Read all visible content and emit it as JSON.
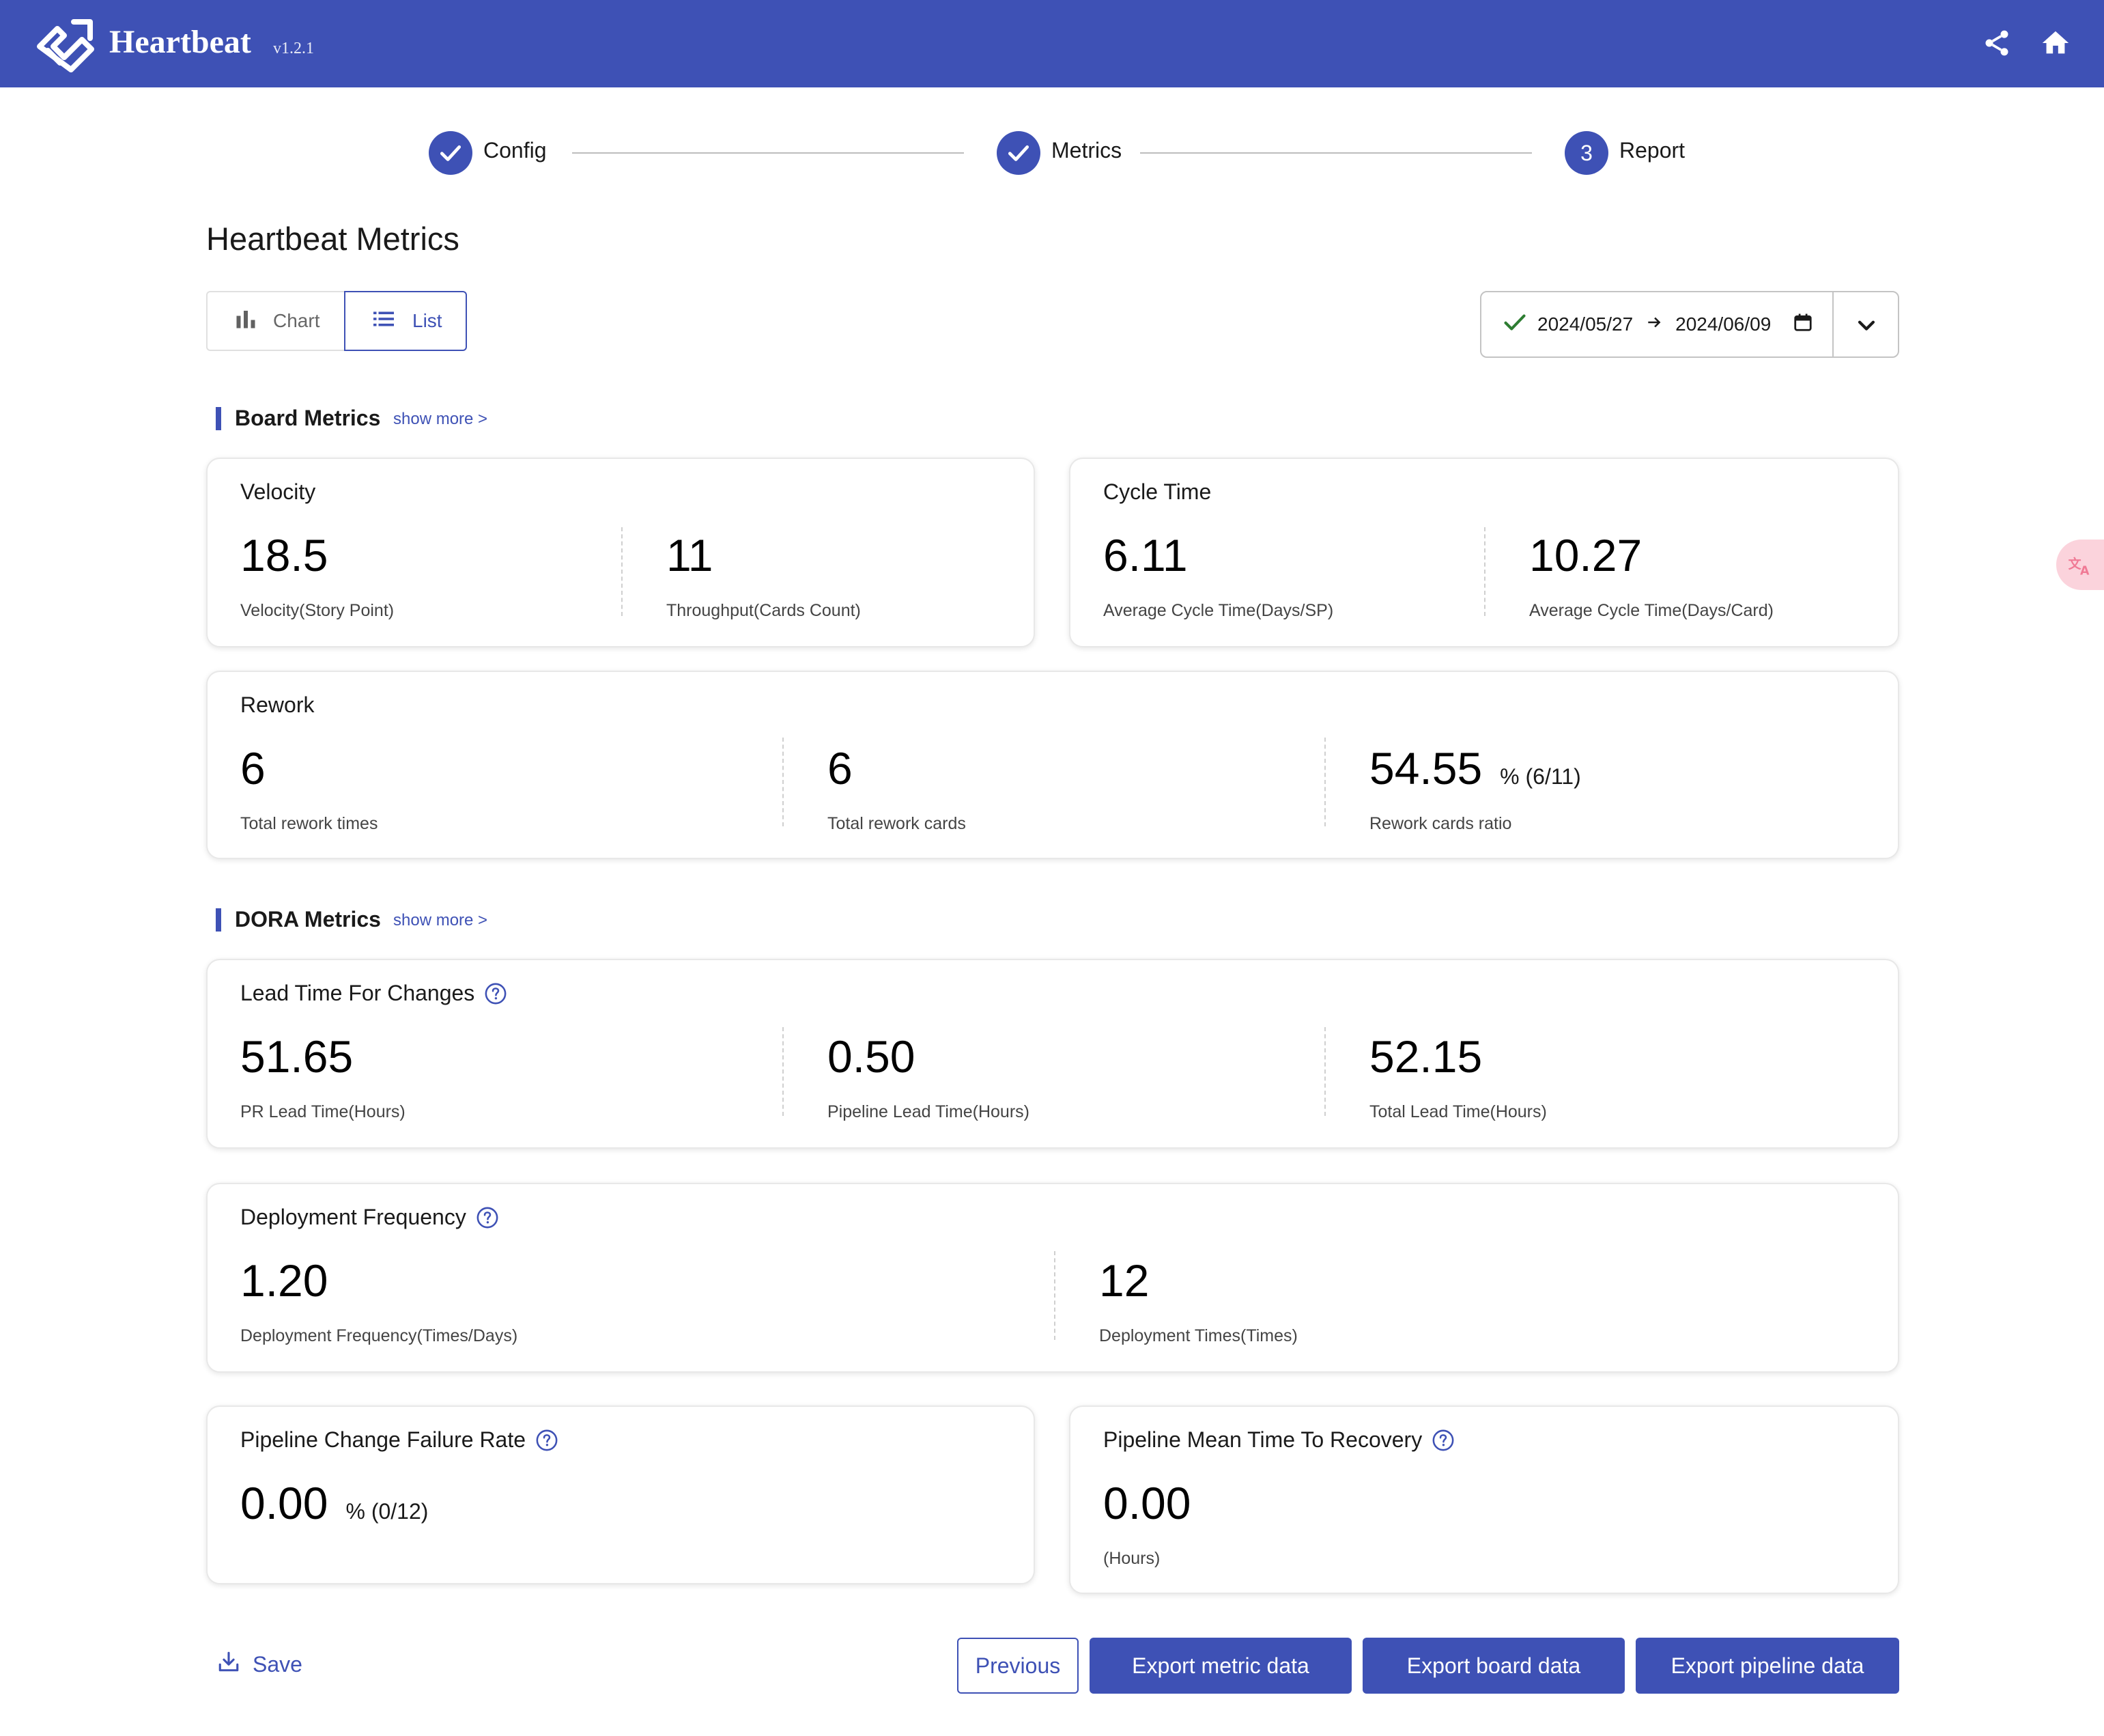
{
  "header": {
    "brand": "Heartbeat",
    "version": "v1.2.1",
    "icons": [
      "logo-icon",
      "share-icon",
      "home-icon"
    ]
  },
  "stepper": {
    "steps": [
      {
        "label": "Config",
        "state": "done"
      },
      {
        "label": "Metrics",
        "state": "done"
      },
      {
        "label": "Report",
        "state": "active",
        "number": "3"
      }
    ]
  },
  "page_title": "Heartbeat Metrics",
  "view_toggle": {
    "chart_label": "Chart",
    "list_label": "List",
    "selected": "List"
  },
  "date_range": {
    "start": "2024/05/27",
    "end": "2024/06/09",
    "status": "check"
  },
  "board_metrics": {
    "title": "Board Metrics",
    "show_more": "show more >",
    "velocity": {
      "title": "Velocity",
      "items": [
        {
          "value": "18.5",
          "label": "Velocity(Story Point)"
        },
        {
          "value": "11",
          "label": "Throughput(Cards Count)"
        }
      ]
    },
    "cycle_time": {
      "title": "Cycle Time",
      "items": [
        {
          "value": "6.11",
          "label": "Average Cycle Time(Days/SP)"
        },
        {
          "value": "10.27",
          "label": "Average Cycle Time(Days/Card)"
        }
      ]
    },
    "rework": {
      "title": "Rework",
      "items": [
        {
          "value": "6",
          "label": "Total rework times"
        },
        {
          "value": "6",
          "label": "Total rework cards"
        },
        {
          "value": "54.55",
          "extra": "% (6/11)",
          "label": "Rework cards ratio"
        }
      ]
    }
  },
  "dora_metrics": {
    "title": "DORA Metrics",
    "show_more": "show more >",
    "lead_time": {
      "title": "Lead Time For Changes",
      "items": [
        {
          "value": "51.65",
          "label": "PR Lead Time(Hours)"
        },
        {
          "value": "0.50",
          "label": "Pipeline Lead Time(Hours)"
        },
        {
          "value": "52.15",
          "label": "Total Lead Time(Hours)"
        }
      ]
    },
    "deployment_frequency": {
      "title": "Deployment Frequency",
      "items": [
        {
          "value": "1.20",
          "label": "Deployment Frequency(Times/Days)"
        },
        {
          "value": "12",
          "label": "Deployment Times(Times)"
        }
      ]
    },
    "change_failure_rate": {
      "title": "Pipeline Change Failure Rate",
      "items": [
        {
          "value": "0.00",
          "extra": "% (0/12)"
        }
      ]
    },
    "mean_time_to_recovery": {
      "title": "Pipeline Mean Time To Recovery",
      "items": [
        {
          "value": "0.00",
          "label": "(Hours)"
        }
      ]
    }
  },
  "footer": {
    "save_label": "Save",
    "previous_label": "Previous",
    "export_metric_label": "Export metric data",
    "export_board_label": "Export board data",
    "export_pipeline_label": "Export pipeline data"
  },
  "colors": {
    "primary": "#3e51b5",
    "success": "#2e7d32"
  }
}
